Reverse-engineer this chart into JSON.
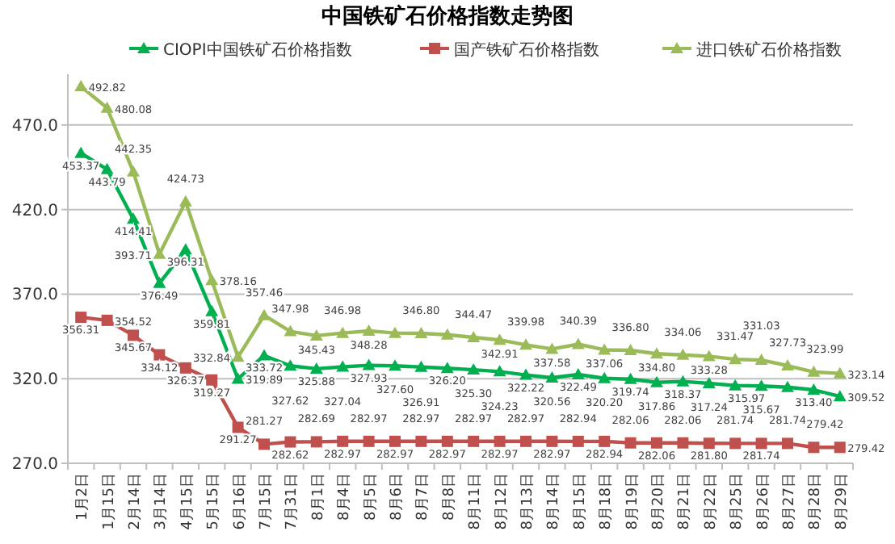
{
  "chart_data": {
    "type": "line",
    "title": "中国铁矿石价格指数走势图",
    "categories": [
      "1月2日",
      "1月15日",
      "2月14日",
      "3月14日",
      "4月15日",
      "5月15日",
      "6月16日",
      "7月15日",
      "7月31日",
      "8月1日",
      "8月4日",
      "8月5日",
      "8月6日",
      "8月7日",
      "8月8日",
      "8月11日",
      "8月12日",
      "8月13日",
      "8月14日",
      "8月15日",
      "8月18日",
      "8月19日",
      "8月20日",
      "8月21日",
      "8月22日",
      "8月25日",
      "8月26日",
      "8月27日",
      "8月28日",
      "8月29日"
    ],
    "series": [
      {
        "name": "CIOPI中国铁矿石价格指数",
        "color": "#00b050",
        "marker": "triangle",
        "values": [
          453.37,
          443.79,
          414.41,
          376.49,
          396.31,
          359.81,
          319.89,
          333.72,
          327.62,
          325.88,
          327.04,
          327.93,
          327.6,
          326.91,
          326.2,
          325.3,
          324.23,
          322.22,
          320.56,
          322.49,
          320.2,
          319.74,
          317.86,
          318.37,
          317.24,
          315.97,
          315.67,
          315,
          313.4,
          309.52
        ],
        "value_labels": [
          "453.37",
          "443.79",
          "414.41",
          "376.49",
          "396.31",
          "359.81",
          "319.89",
          "333.72",
          "327.62",
          "325.88",
          "327.04",
          "327.93",
          "327.60",
          "326.91",
          "326.20",
          "325.30",
          "324.23",
          "322.22",
          "320.56",
          "322.49",
          "320.20",
          "319.74",
          "317.86",
          "318.37",
          "317.24",
          "315.97",
          "315.67",
          null,
          "313.40",
          "309.52"
        ]
      },
      {
        "name": "国产铁矿石价格指数",
        "color": "#c0504d",
        "marker": "square",
        "values": [
          356.31,
          354.52,
          345.67,
          334.12,
          326.37,
          319.27,
          291.27,
          281.27,
          282.62,
          282.69,
          282.97,
          282.97,
          282.97,
          282.97,
          282.97,
          282.97,
          282.97,
          282.97,
          282.97,
          282.94,
          282.94,
          282.06,
          282.06,
          282.06,
          281.8,
          281.74,
          281.74,
          281.74,
          279.42,
          279.42
        ],
        "value_labels": [
          "356.31",
          "354.52",
          "345.67",
          "334.12",
          "326.37",
          "319.27",
          "291.27",
          "281.27",
          "282.62",
          "282.69",
          "282.97",
          "282.97",
          "282.97",
          "282.97",
          "282.97",
          "282.97",
          "282.97",
          "282.97",
          "282.97",
          "282.94",
          "282.94",
          "282.06",
          "282.06",
          "282.06",
          "281.80",
          "281.74",
          "281.74",
          "281.74",
          "279.42",
          "279.42"
        ]
      },
      {
        "name": "进口铁矿石价格指数",
        "color": "#9bbb59",
        "marker": "triangle",
        "values": [
          492.82,
          480.08,
          442.35,
          393.71,
          424.73,
          378.16,
          332.84,
          357.46,
          347.98,
          345.43,
          346.98,
          348.28,
          347,
          346.8,
          346,
          344.47,
          342.91,
          339.98,
          337.58,
          340.39,
          337.06,
          336.8,
          334.8,
          334.06,
          333.28,
          331.47,
          331.03,
          327.73,
          323.99,
          323.14
        ],
        "value_labels": [
          "492.82",
          "480.08",
          "442.35",
          "393.71",
          "424.73",
          "378.16",
          "332.84",
          "357.46",
          "347.98",
          "345.43",
          "346.98",
          "348.28",
          null,
          "346.80",
          null,
          "344.47",
          "342.91",
          "339.98",
          "337.58",
          "340.39",
          "337.06",
          "336.80",
          "334.80",
          "334.06",
          "333.28",
          "331.47",
          "331.03",
          "327.73",
          "323.99",
          "323.14"
        ]
      }
    ],
    "ylim": [
      270,
      500
    ],
    "yticks": [
      {
        "value": 270,
        "label": "270.0"
      },
      {
        "value": 320,
        "label": "320.0"
      },
      {
        "value": 370,
        "label": "370.0"
      },
      {
        "value": 420,
        "label": "420.0"
      },
      {
        "value": 470,
        "label": "470.0"
      }
    ],
    "grid": "y",
    "legend": "top",
    "line_style": "solid"
  }
}
